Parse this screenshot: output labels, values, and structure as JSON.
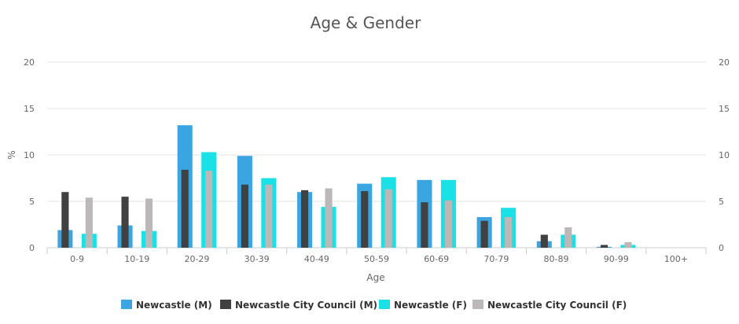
{
  "chart_data": {
    "type": "bar",
    "title": "Age & Gender",
    "xlabel": "Age",
    "ylabel": "%",
    "ylim": [
      0,
      20
    ],
    "yticks": [
      0,
      5,
      10,
      15,
      20
    ],
    "grid": true,
    "legend_position": "bottom",
    "categories": [
      "0-9",
      "10-19",
      "20-29",
      "30-39",
      "40-49",
      "50-59",
      "60-69",
      "70-79",
      "80-89",
      "90-99",
      "100+"
    ],
    "series": [
      {
        "name": "Newcastle (M)",
        "color": "#3aa5e0",
        "group": "M",
        "layer": "back",
        "values": [
          1.9,
          2.4,
          13.2,
          9.9,
          6.0,
          6.9,
          7.3,
          3.3,
          0.7,
          0.1,
          0.0
        ]
      },
      {
        "name": "Newcastle City Council (M)",
        "color": "#414141",
        "group": "M",
        "layer": "front",
        "values": [
          6.0,
          5.5,
          8.4,
          6.8,
          6.2,
          6.1,
          4.9,
          2.9,
          1.4,
          0.3,
          0.0
        ]
      },
      {
        "name": "Newcastle (F)",
        "color": "#19e1e6",
        "group": "F",
        "layer": "back",
        "values": [
          1.5,
          1.8,
          10.3,
          7.5,
          4.4,
          7.6,
          7.3,
          4.3,
          1.4,
          0.3,
          0.0
        ]
      },
      {
        "name": "Newcastle City Council (F)",
        "color": "#bcb8b8",
        "group": "F",
        "layer": "front",
        "values": [
          5.4,
          5.3,
          8.3,
          6.8,
          6.4,
          6.3,
          5.1,
          3.3,
          2.2,
          0.6,
          0.0
        ]
      }
    ]
  }
}
